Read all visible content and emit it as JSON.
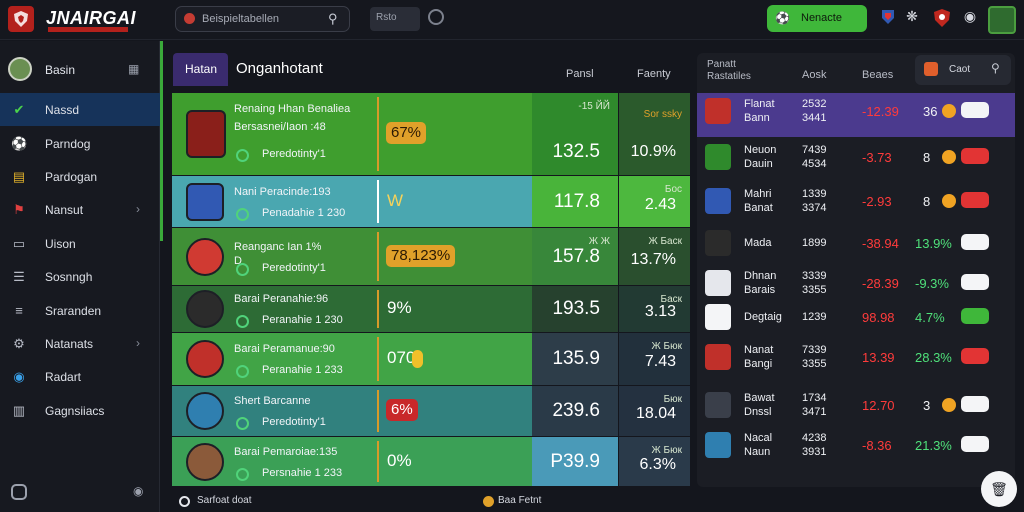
{
  "app": {
    "title": "JNAIRGAI"
  },
  "search": {
    "placeholder": "Beispieltabellen"
  },
  "topbar": {
    "mini_label": "Rsto",
    "action_label": "Nenacte"
  },
  "sidebar": {
    "profile_name": "Basin",
    "items": [
      {
        "label": "Nassd",
        "icon": "check-icon",
        "active": true,
        "chevron": false
      },
      {
        "label": "Parndog",
        "icon": "ball-icon",
        "active": false,
        "chevron": false
      },
      {
        "label": "Pardogan",
        "icon": "stack-icon",
        "active": false,
        "chevron": false
      },
      {
        "label": "Nansut",
        "icon": "flag-icon",
        "active": false,
        "chevron": true
      },
      {
        "label": "Uison",
        "icon": "card-icon",
        "active": false,
        "chevron": false
      },
      {
        "label": "Sosnngh",
        "icon": "shirt-icon",
        "active": false,
        "chevron": false
      },
      {
        "label": "Sraranden",
        "icon": "list-icon",
        "active": false,
        "chevron": false
      },
      {
        "label": "Natanats",
        "icon": "gear-icon",
        "active": false,
        "chevron": true
      },
      {
        "label": "Radart",
        "icon": "radar-icon",
        "active": false,
        "chevron": false
      },
      {
        "label": "Gagnsiiacs",
        "icon": "chart-icon",
        "active": false,
        "chevron": false
      }
    ]
  },
  "main": {
    "tab_label": "Hatan",
    "title": "Onganhotant",
    "col_b": "Pansl",
    "col_c": "Faenty",
    "rows": [
      {
        "line1": "Renaing Hhan Benaliea",
        "line1b": "Bersasnei/Iaon :48",
        "line2": "Peredotinty'1",
        "pct": "67%",
        "pct_style": "pill-gold",
        "b_top": "-15 ЙЙ",
        "b_val": "132.5",
        "c_top": "Sor ssky",
        "c_val": "10.9%"
      },
      {
        "line1": "Nani Peracinde:193",
        "line2": "Penadahie 1 230",
        "pct": "W",
        "pct_style": "plain-gold",
        "b_top": "",
        "b_val": "117.8",
        "c_top": "Бос",
        "c_val": "2.43"
      },
      {
        "line1": "Reanganc Ian 1%",
        "line1b": "D",
        "line2": "Peredotinty'1",
        "pct": "78,123%",
        "pct_style": "pill-gold",
        "b_top": "Ж Ж",
        "b_val": "157.8",
        "c_top": "Ж Баск",
        "c_val": "13.7%"
      },
      {
        "line1": "Barai Peranahie:96",
        "line2": "Peranahie 1 230",
        "pct": "9%",
        "pct_style": "plain",
        "b_top": "",
        "b_val": "193.5",
        "c_top": "Баск",
        "c_val": "3.13"
      },
      {
        "line1": "Barai Peramanue:90",
        "line2": "Peranahie 1 233",
        "pct": "070",
        "pct_style": "plain-coin",
        "b_top": "",
        "b_val": "135.9",
        "c_top": "Ж Бюк",
        "c_val": "7.43"
      },
      {
        "line1": "Shert Barcanne",
        "line2": "Peredotinty'1",
        "pct": "6%",
        "pct_style": "pill-red",
        "b_top": "",
        "b_val": "239.6",
        "c_top": "Бюк",
        "c_val": "18.04"
      },
      {
        "line1": "Barai Pemaroiae:135",
        "line2": "Persnahie 1 233",
        "pct": "0%",
        "pct_style": "plain",
        "b_top": "",
        "b_val": "P39.9",
        "c_top": "Ж Бюк",
        "c_val": "6.3%"
      }
    ]
  },
  "panel": {
    "h1a": "Panatt",
    "h1b": "Rastatiles",
    "h2": "Aosk",
    "h3": "Beaes",
    "search_label": "Caot",
    "rows": [
      {
        "n1": "Flanat",
        "n2": "Bann",
        "s1": "2532",
        "s2": "3441",
        "v": "-12.39",
        "g": "36",
        "dot": true,
        "pill": "",
        "pill_color": "#f4f5f7",
        "highlight": true
      },
      {
        "n1": "Neuon",
        "n2": "Dauin",
        "s1": "7439",
        "s2": "4534",
        "v": "-3.73",
        "g": "8",
        "dot": true,
        "pill": "",
        "pill_color": "#e23434",
        "highlight": false
      },
      {
        "n1": "Mahri",
        "n2": "Banat",
        "s1": "1339",
        "s2": "3374",
        "v": "-2.93",
        "g": "8",
        "dot": true,
        "pill": "",
        "pill_color": "#e23434",
        "highlight": false
      },
      {
        "n1": "Mada",
        "n2": "",
        "s1": "1899",
        "s2": "",
        "v": "-38.94",
        "g": "13.9%",
        "dot": false,
        "pill": "",
        "pill_color": "#f4f5f7",
        "highlight": false
      },
      {
        "n1": "Dhnan",
        "n2": "Barais",
        "s1": "3339",
        "s2": "3355",
        "v": "-28.39",
        "g": "-9.3%",
        "dot": false,
        "pill": "",
        "pill_color": "#f4f5f7",
        "highlight": false
      },
      {
        "n1": "Degtaig",
        "n2": "",
        "s1": "1239",
        "s2": "",
        "v": "98.98",
        "g": "4.7%",
        "dot": false,
        "pill": "",
        "pill_color": "#3fb73a",
        "highlight": false
      },
      {
        "n1": "Nanat",
        "n2": "Bangi",
        "s1": "7339",
        "s2": "3355",
        "v": "13.39",
        "g": "28.3%",
        "dot": false,
        "pill": "",
        "pill_color": "#e23434",
        "highlight": false
      },
      {
        "n1": "Bawat",
        "n2": "Dnssl",
        "s1": "1734",
        "s2": "3471",
        "v": "12.70",
        "g": "3",
        "dot": true,
        "pill": "",
        "pill_color": "#f4f5f7",
        "highlight": false
      },
      {
        "n1": "Nacal",
        "n2": "Naun",
        "s1": "4238",
        "s2": "3931",
        "v": "-8.36",
        "g": "21.3%",
        "dot": false,
        "pill": "",
        "pill_color": "#f4f5f7",
        "highlight": false
      }
    ]
  },
  "footer": {
    "left_label": "Sarfoat doat",
    "right_label": "Baa Fetnt"
  }
}
